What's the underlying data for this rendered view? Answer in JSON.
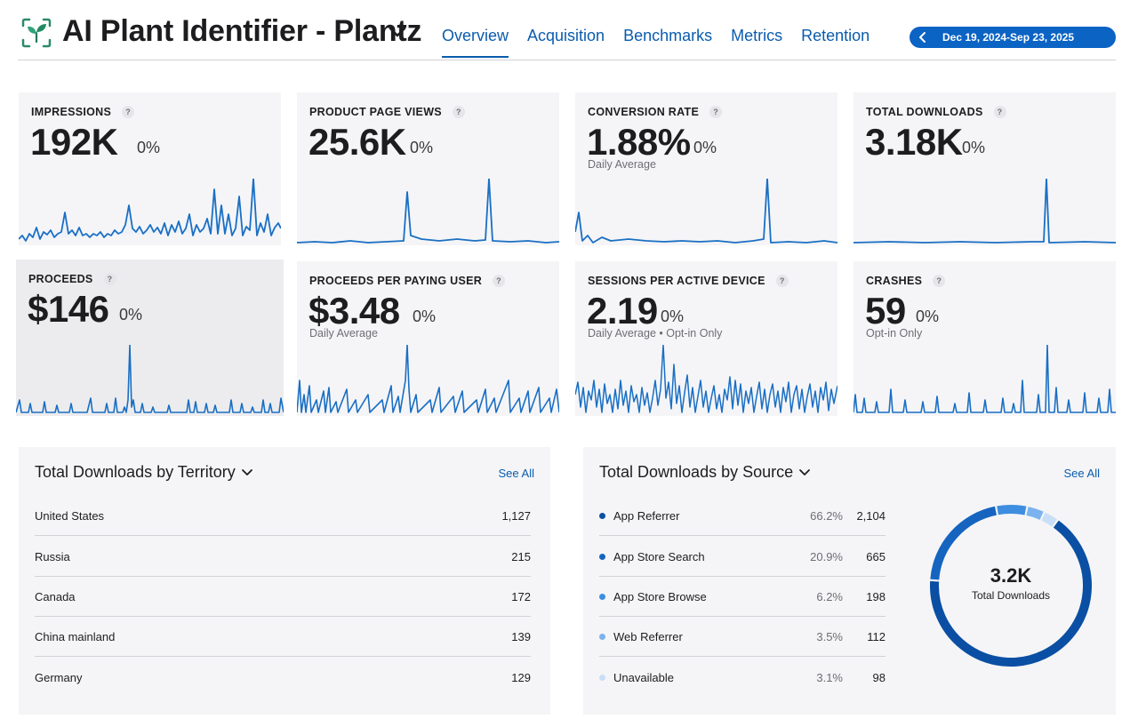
{
  "app": {
    "title": "AI Plant Identifier - Plantz",
    "date_range": "Dec 19, 2024-Sep 23, 2025"
  },
  "tabs": [
    {
      "label": "Overview",
      "active": true
    },
    {
      "label": "Acquisition",
      "active": false
    },
    {
      "label": "Benchmarks",
      "active": false
    },
    {
      "label": "Metrics",
      "active": false
    },
    {
      "label": "Retention",
      "active": false
    }
  ],
  "metrics": [
    {
      "label": "IMPRESSIONS",
      "value": "192K",
      "change": "0%",
      "sub": ""
    },
    {
      "label": "PRODUCT PAGE VIEWS",
      "value": "25.6K",
      "change": "0%",
      "sub": ""
    },
    {
      "label": "CONVERSION RATE",
      "value": "1.88%",
      "change": "0%",
      "sub": "Daily Average"
    },
    {
      "label": "TOTAL DOWNLOADS",
      "value": "3.18K",
      "change": "0%",
      "sub": ""
    },
    {
      "label": "PROCEEDS",
      "value": "$146",
      "change": "0%",
      "sub": ""
    },
    {
      "label": "PROCEEDS PER PAYING USER",
      "value": "$3.48",
      "change": "0%",
      "sub": "Daily Average"
    },
    {
      "label": "SESSIONS PER ACTIVE DEVICE",
      "value": "2.19",
      "change": "0%",
      "sub": "Daily Average • Opt-in Only"
    },
    {
      "label": "CRASHES",
      "value": "59",
      "change": "0%",
      "sub": "Opt-in Only"
    }
  ],
  "help_glyph": "?",
  "territory": {
    "title": "Total Downloads by Territory",
    "see_all": "See All",
    "rows": [
      {
        "name": "United States",
        "value": "1,127"
      },
      {
        "name": "Russia",
        "value": "215"
      },
      {
        "name": "Canada",
        "value": "172"
      },
      {
        "name": "China mainland",
        "value": "139"
      },
      {
        "name": "Germany",
        "value": "129"
      }
    ]
  },
  "source": {
    "title": "Total Downloads by Source",
    "see_all": "See All",
    "rows": [
      {
        "name": "App Referrer",
        "pct": "66.2%",
        "value": "2,104",
        "color": "#0a4fa3"
      },
      {
        "name": "App Store Search",
        "pct": "20.9%",
        "value": "665",
        "color": "#1565c0"
      },
      {
        "name": "App Store Browse",
        "pct": "6.2%",
        "value": "198",
        "color": "#3d8ee0"
      },
      {
        "name": "Web Referrer",
        "pct": "3.5%",
        "value": "112",
        "color": "#7ab3ee"
      },
      {
        "name": "Unavailable",
        "pct": "3.1%",
        "value": "98",
        "color": "#c9def7"
      }
    ],
    "donut": {
      "value": "3.2K",
      "label": "Total Downloads"
    }
  },
  "chart_data": {
    "type": "pie",
    "title": "Total Downloads by Source",
    "categories": [
      "App Referrer",
      "App Store Search",
      "App Store Browse",
      "Web Referrer",
      "Unavailable"
    ],
    "values": [
      2104,
      665,
      198,
      112,
      98
    ]
  }
}
